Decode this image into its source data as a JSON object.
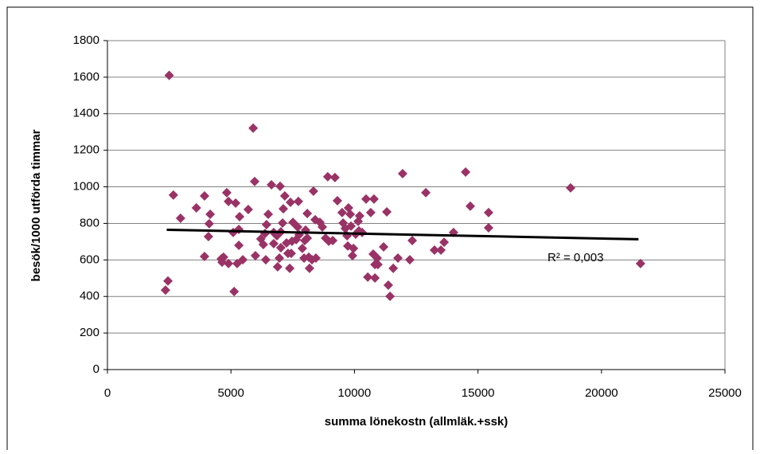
{
  "chart_data": {
    "type": "scatter",
    "x_label": "summa lönekostn (allmläk.+ssk)",
    "y_label": "besök/1000 utförda timmar",
    "color": "#993366",
    "x": [
      2500,
      2350,
      2450,
      2670,
      2960,
      3600,
      3930,
      3930,
      4090,
      4120,
      4160,
      4830,
      4900,
      4700,
      4610,
      4640,
      4900,
      5090,
      5190,
      5130,
      5250,
      5320,
      5320,
      5350,
      5480,
      5700,
      5900,
      5960,
      5990,
      6210,
      6310,
      6380,
      6440,
      6510,
      6410,
      6640,
      6730,
      6730,
      6890,
      6860,
      6990,
      6960,
      7020,
      7020,
      7090,
      7120,
      7180,
      7250,
      7310,
      7380,
      7410,
      7440,
      7470,
      7510,
      7640,
      7700,
      7730,
      7760,
      7890,
      7960,
      7990,
      8020,
      8090,
      8090,
      8150,
      8180,
      8280,
      8340,
      8410,
      8440,
      8600,
      8700,
      8830,
      8920,
      8960,
      9120,
      9210,
      9310,
      9500,
      9540,
      9630,
      9700,
      9730,
      9760,
      9830,
      9860,
      9920,
      9960,
      10050,
      10150,
      10180,
      10210,
      10310,
      10470,
      10540,
      10660,
      10760,
      10790,
      10830,
      10830,
      10920,
      10950,
      11180,
      11310,
      11370,
      11440,
      11570,
      11760,
      11950,
      12240,
      12340,
      12890,
      13240,
      13500,
      13630,
      14010,
      14500,
      14690,
      15430,
      15430,
      18750,
      21580
    ],
    "values": [
      1610,
      435,
      485,
      955,
      828,
      885,
      950,
      619,
      728,
      798,
      850,
      968,
      920,
      615,
      606,
      588,
      580,
      750,
      911,
      427,
      580,
      680,
      767,
      837,
      601,
      876,
      1321,
      1029,
      623,
      715,
      684,
      745,
      793,
      850,
      601,
      1011,
      750,
      689,
      562,
      732,
      1003,
      610,
      667,
      754,
      802,
      880,
      950,
      693,
      636,
      554,
      915,
      636,
      702,
      806,
      711,
      780,
      920,
      737,
      663,
      610,
      706,
      763,
      854,
      719,
      615,
      554,
      601,
      976,
      820,
      610,
      806,
      780,
      719,
      1055,
      702,
      706,
      1051,
      924,
      859,
      802,
      772,
      732,
      676,
      885,
      850,
      785,
      623,
      663,
      741,
      811,
      759,
      841,
      750,
      933,
      506,
      859,
      632,
      933,
      575,
      501,
      610,
      575,
      671,
      863,
      462,
      401,
      554,
      610,
      1072,
      601,
      706,
      968,
      654,
      654,
      697,
      750,
      1081,
      894,
      859,
      776,
      994,
      580
    ],
    "trendline": {
      "x": [
        2400,
        21500
      ],
      "y": [
        765,
        713
      ],
      "color": "#000000"
    },
    "annotation": "R² = 0,003",
    "xlim": [
      0,
      25000
    ],
    "xticks": [
      0,
      5000,
      10000,
      15000,
      20000,
      25000
    ],
    "ylim": [
      0,
      1800
    ],
    "yticks": [
      0,
      200,
      400,
      600,
      800,
      1000,
      1200,
      1400,
      1600,
      1800
    ],
    "grid": true
  }
}
